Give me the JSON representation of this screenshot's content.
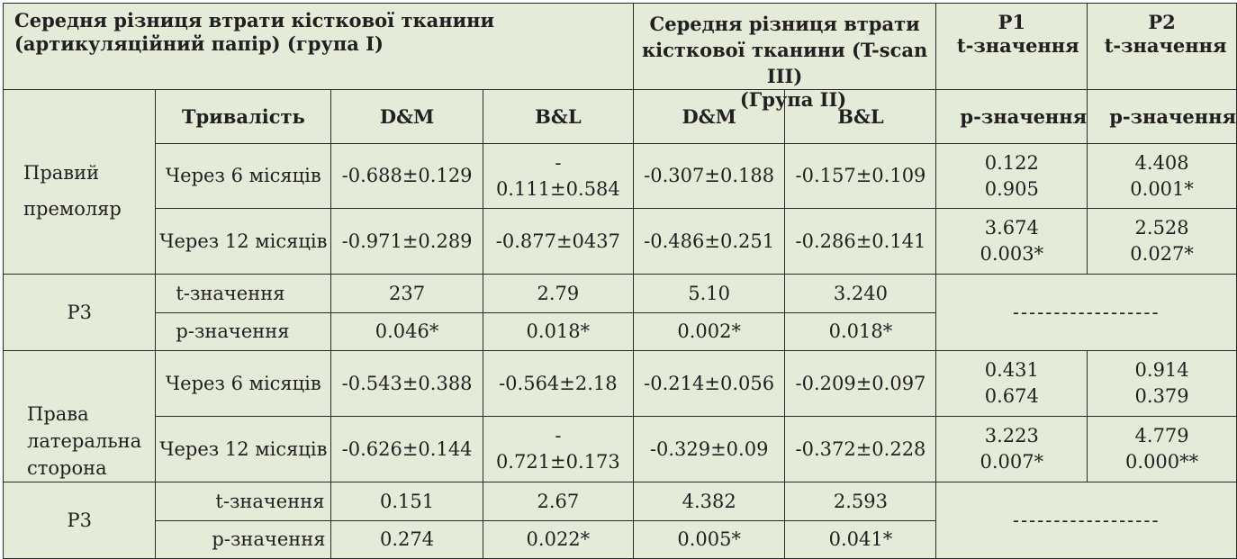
{
  "header": {
    "group1": "Середня різниця втрати кісткової тканини (артикуляційний папір) (група I)",
    "group2_line1": "Середня різниця втрати",
    "group2_line2": "кісткової тканини (T-scan III)",
    "group2_line3": "(Група II)",
    "p1_line1": "P1",
    "p1_line2": "t-значення",
    "p2_line1": "P2",
    "p2_line2": "t-значення",
    "duration": "Тривалість",
    "dm1": "D&M",
    "bl1": "B&L",
    "dm2": "D&M",
    "bl2": "B&L",
    "p1_p": "p-значення",
    "p2_p": "p-значення"
  },
  "sections": [
    {
      "label": "Правий премоляр",
      "rows": [
        {
          "duration": "Через 6 місяців",
          "dm1": "-0.688±0.129",
          "bl1_top": "-",
          "bl1_bottom": "0.111±0.584",
          "dm2": "-0.307±0.188",
          "bl2": "-0.157±0.109",
          "p1_t": "0.122",
          "p1_p": "0.905",
          "p2_t": "4.408",
          "p2_p": "0.001*"
        },
        {
          "duration": "Через 12 місяців",
          "dm1": "-0.971±0.289",
          "bl1": "-0.877±0437",
          "dm2": "-0.486±0.251",
          "bl2": "-0.286±0.141",
          "p1_t": "3.674",
          "p1_p": "0.003*",
          "p2_t": "2.528",
          "p2_p": "0.027*"
        }
      ],
      "p3": {
        "label": "P3",
        "t_label": "t-значення",
        "p_label": "p-значення",
        "t_values": [
          "237",
          "2.79",
          "5.10",
          "3.240"
        ],
        "p_values": [
          "0.046*",
          "0.018*",
          "0.002*",
          "0.018*"
        ],
        "dashes": "------------------"
      }
    },
    {
      "label": "Права латеральна сторона",
      "label_lines": [
        "Права",
        "латеральна",
        "сторона"
      ],
      "rows": [
        {
          "duration": "Через 6 місяців",
          "dm1": "-0.543±0.388",
          "bl1": "-0.564±2.18",
          "dm2": "-0.214±0.056",
          "bl2": "-0.209±0.097",
          "p1_t": "0.431",
          "p1_p": "0.674",
          "p2_t": "0.914",
          "p2_p": "0.379"
        },
        {
          "duration": "Через 12 місяців",
          "dm1": "-0.626±0.144",
          "bl1_top": "-",
          "bl1_bottom": "0.721±0.173",
          "dm2": "-0.329±0.09",
          "bl2": "-0.372±0.228",
          "p1_t": "3.223",
          "p1_p": "0.007*",
          "p2_t": "4.779",
          "p2_p": "0.000**"
        }
      ],
      "p3": {
        "label": "P3",
        "t_label": "t-значення",
        "p_label": "p-значення",
        "t_values": [
          "0.151",
          "2.67",
          "4.382",
          "2.593"
        ],
        "p_values": [
          "0.274",
          "0.022*",
          "0.005*",
          "0.041*"
        ],
        "dashes": "------------------"
      }
    }
  ]
}
